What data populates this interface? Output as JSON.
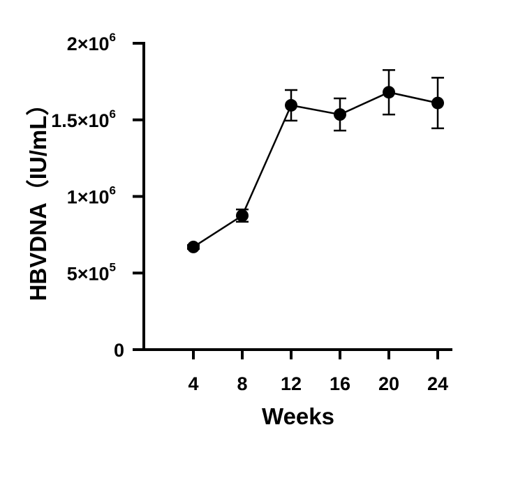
{
  "chart_data": {
    "type": "line",
    "xlabel": "Weeks",
    "ylabel": "HBVDNA（IU/mL）",
    "x": [
      4,
      8,
      12,
      16,
      20,
      24
    ],
    "x_ticks": [
      "4",
      "8",
      "12",
      "16",
      "20",
      "24"
    ],
    "xlim": [
      0,
      25
    ],
    "y_ticks": [
      {
        "value": 0,
        "mantissa": "0",
        "exponent": ""
      },
      {
        "value": 500000,
        "mantissa": "5×10",
        "exponent": "5"
      },
      {
        "value": 1000000,
        "mantissa": "1×10",
        "exponent": "6"
      },
      {
        "value": 1500000,
        "mantissa": "1.5×10",
        "exponent": "6"
      },
      {
        "value": 2000000,
        "mantissa": "2×10",
        "exponent": "6"
      }
    ],
    "ylim": [
      0,
      2000000
    ],
    "series": [
      {
        "values": [
          670000,
          875000,
          1595000,
          1535000,
          1680000,
          1610000
        ],
        "error": [
          12000,
          40000,
          100000,
          105000,
          145000,
          165000
        ]
      }
    ],
    "grid": false,
    "legend": "none",
    "color": "#000000"
  }
}
